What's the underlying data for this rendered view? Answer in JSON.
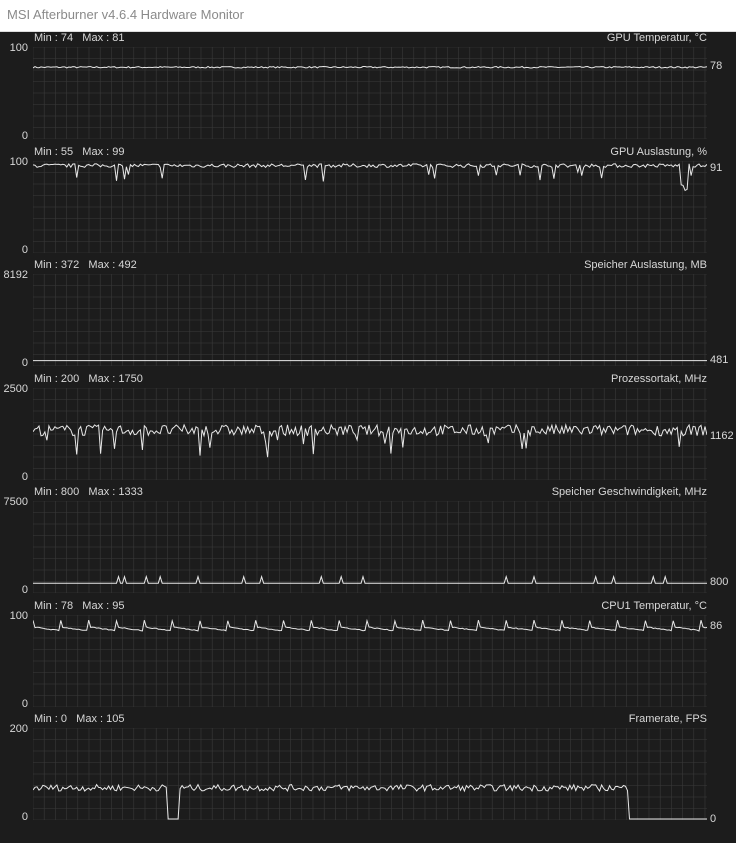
{
  "window": {
    "title": "MSI Afterburner v4.6.4 Hardware Monitor"
  },
  "colors": {
    "background": "#1c1c1c",
    "grid": "#3a3a3a",
    "trace": "#e8e8e8",
    "text": "#d8d8d8"
  },
  "panels": [
    {
      "min_max": "Min : 74   Max : 81",
      "name": "GPU Temperatur, °C",
      "ymax": "100",
      "ymin": "0",
      "current": "78",
      "scale_max": 100,
      "current_value": 78
    },
    {
      "min_max": "Min : 55   Max : 99",
      "name": "GPU Auslastung, %",
      "ymax": "100",
      "ymin": "0",
      "current": "91",
      "scale_max": 100,
      "current_value": 91
    },
    {
      "min_max": "Min : 372   Max : 492",
      "name": "Speicher Auslastung, MB",
      "ymax": "8192",
      "ymin": "0",
      "current": "481",
      "scale_max": 8192,
      "current_value": 481
    },
    {
      "min_max": "Min : 200   Max : 1750",
      "name": "Prozessortakt, MHz",
      "ymax": "2500",
      "ymin": "0",
      "current": "1162",
      "scale_max": 2500,
      "current_value": 1162
    },
    {
      "min_max": "Min : 800   Max : 1333",
      "name": "Speicher Geschwindigkeit, MHz",
      "ymax": "7500",
      "ymin": "0",
      "current": "800",
      "scale_max": 7500,
      "current_value": 800
    },
    {
      "min_max": "Min : 78   Max : 95",
      "name": "CPU1 Temperatur, °C",
      "ymax": "100",
      "ymin": "0",
      "current": "86",
      "scale_max": 100,
      "current_value": 86
    },
    {
      "min_max": "Min : 0   Max : 105",
      "name": "Framerate, FPS",
      "ymax": "200",
      "ymin": "0",
      "current": "0",
      "scale_max": 200,
      "current_value": 0
    }
  ]
}
